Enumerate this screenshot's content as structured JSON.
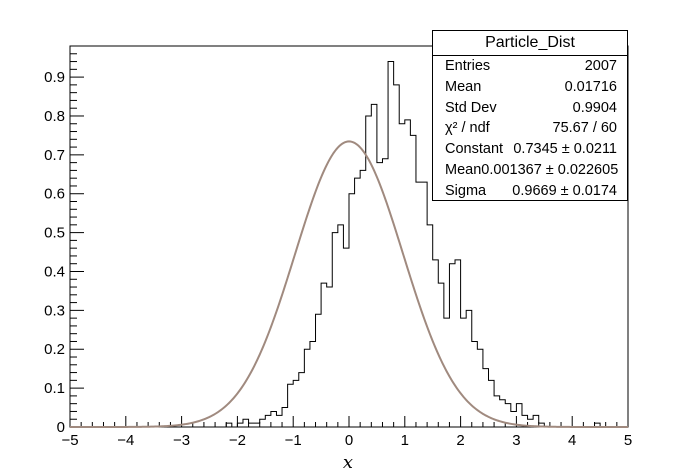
{
  "chart_data": {
    "type": "histogram",
    "xlabel": "x",
    "ylabel": "",
    "xlim": [
      -5,
      5
    ],
    "ylim": [
      0,
      0.98
    ],
    "x_ticks": [
      -5,
      -4,
      -3,
      -2,
      -1,
      0,
      1,
      2,
      3,
      4,
      5
    ],
    "y_ticks": [
      0,
      0.1,
      0.2,
      0.3,
      0.4,
      0.5,
      0.6,
      0.7,
      0.8,
      0.9
    ],
    "x_tick_labels": [
      "−5",
      "−4",
      "−3",
      "−2",
      "−1",
      "0",
      "1",
      "2",
      "3",
      "4",
      "5"
    ],
    "y_tick_labels": [
      "0",
      "0.1",
      "0.2",
      "0.3",
      "0.4",
      "0.5",
      "0.6",
      "0.7",
      "0.8",
      "0.9"
    ],
    "bin_edges_range": [
      -5,
      5
    ],
    "bin_count": 100,
    "bin_values": [
      0,
      0,
      0,
      0,
      0,
      0,
      0,
      0,
      0,
      0,
      0,
      0,
      0,
      0,
      0,
      0,
      0,
      0,
      0,
      0,
      0,
      0,
      0,
      0,
      0,
      0,
      0,
      0,
      0.01,
      0,
      0.01,
      0.02,
      0.01,
      0.01,
      0.02,
      0.03,
      0.04,
      0.03,
      0.05,
      0.11,
      0.12,
      0.14,
      0.2,
      0.22,
      0.29,
      0.37,
      0.36,
      0.5,
      0.52,
      0.46,
      0.6,
      0.64,
      0.66,
      0.8,
      0.83,
      0.68,
      0.69,
      0.94,
      0.88,
      0.78,
      0.79,
      0.75,
      0.63,
      0.63,
      0.52,
      0.43,
      0.37,
      0.28,
      0.42,
      0.43,
      0.28,
      0.3,
      0.22,
      0.2,
      0.15,
      0.12,
      0.08,
      0.07,
      0.06,
      0.04,
      0.06,
      0.03,
      0.02,
      0.03,
      0.01,
      0,
      0,
      0,
      0,
      0,
      0,
      0,
      0,
      0,
      0.01,
      0,
      0,
      0,
      0,
      0
    ],
    "fit": {
      "function": "gaus",
      "constant": 0.7345,
      "mean": 0.001367,
      "sigma": 0.9669,
      "color": "#a08a7f"
    },
    "stats": {
      "title": "Particle_Dist",
      "rows": [
        {
          "label": "Entries",
          "value": "2007"
        },
        {
          "label": "Mean",
          "value": "0.01716"
        },
        {
          "label": "Std Dev",
          "value": "0.9904"
        },
        {
          "label": "χ² / ndf",
          "value": "75.67 / 60"
        },
        {
          "label": "Constant",
          "value": "0.7345 ± 0.0211"
        },
        {
          "label": "Mean",
          "value": "0.001367 ± 0.022605"
        },
        {
          "label": "Sigma",
          "value": "0.9669 ± 0.0174"
        }
      ]
    },
    "grid": false,
    "legend_placement": "top-right",
    "colors": {
      "histogram": "#000000",
      "fit": "#a08a7f",
      "frame": "#000000"
    }
  }
}
